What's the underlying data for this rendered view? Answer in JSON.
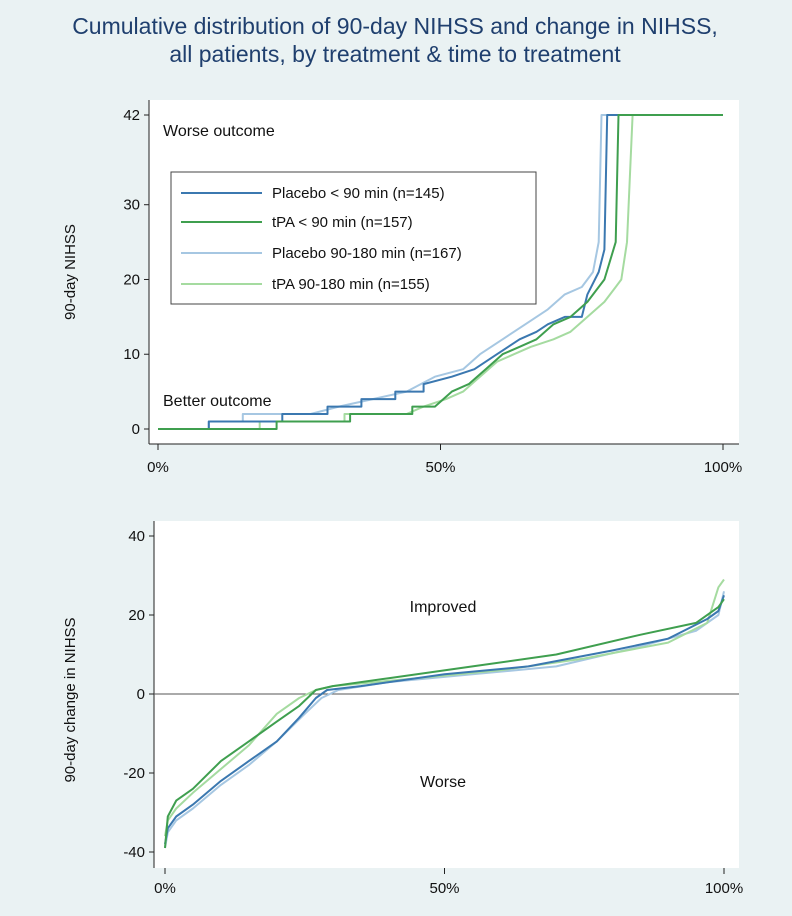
{
  "title_lines": [
    "Cumulative distribution of 90-day NIHSS and change in NIHSS,",
    "all patients, by treatment & time to treatment"
  ],
  "colors": {
    "figure_bg": "#eaf2f3",
    "plot_bg": "#ffffff",
    "title": "#1f3f6e",
    "placebo_lt90": "#3b78b0",
    "tpa_lt90": "#3f9f4f",
    "placebo_90_180": "#a6c7e2",
    "tpa_90_180": "#a5dba0"
  },
  "chart_data": [
    {
      "type": "line",
      "ylabel": "90-day NIHSS",
      "xlabel": "",
      "x_tick_labels": [
        "0%",
        "50%",
        "100%"
      ],
      "x_ticks": [
        0,
        50,
        100
      ],
      "xlim": [
        0,
        100
      ],
      "y_tick_labels": [
        "0",
        "10",
        "20",
        "30",
        "42"
      ],
      "y_ticks": [
        0,
        10,
        20,
        30,
        42
      ],
      "ylim": [
        -1.5,
        44
      ],
      "reference_line": null,
      "annotations": {
        "top": "Worse outcome",
        "bottom": "Better outcome"
      },
      "legend": [
        "Placebo < 90 min (n=145)",
        "tPA < 90 min (n=157)",
        "Placebo 90-180 min (n=167)",
        "tPA 90-180 min (n=155)"
      ],
      "series": [
        {
          "name": "Placebo < 90 min (n=145)",
          "color_key": "placebo_lt90",
          "points": [
            [
              0,
              0
            ],
            [
              9,
              0
            ],
            [
              9,
              1
            ],
            [
              22,
              1
            ],
            [
              22,
              2
            ],
            [
              30,
              2
            ],
            [
              30,
              3
            ],
            [
              36,
              3
            ],
            [
              36,
              4
            ],
            [
              42,
              4
            ],
            [
              42,
              5
            ],
            [
              47,
              5
            ],
            [
              47,
              6
            ],
            [
              52,
              7
            ],
            [
              56,
              8
            ],
            [
              60,
              10
            ],
            [
              64,
              12
            ],
            [
              67,
              13
            ],
            [
              69,
              14
            ],
            [
              72,
              15
            ],
            [
              75,
              15
            ],
            [
              76,
              18
            ],
            [
              78,
              21
            ],
            [
              79,
              24
            ],
            [
              79.5,
              42
            ],
            [
              100,
              42
            ]
          ]
        },
        {
          "name": "tPA < 90 min (n=157)",
          "color_key": "tpa_lt90",
          "points": [
            [
              0,
              0
            ],
            [
              21,
              0
            ],
            [
              21,
              1
            ],
            [
              34,
              1
            ],
            [
              34,
              2
            ],
            [
              45,
              2
            ],
            [
              45,
              3
            ],
            [
              49,
              3
            ],
            [
              52,
              5
            ],
            [
              55,
              6
            ],
            [
              58,
              8
            ],
            [
              61,
              10
            ],
            [
              64,
              11
            ],
            [
              67,
              12
            ],
            [
              70,
              14
            ],
            [
              73,
              15
            ],
            [
              76,
              17
            ],
            [
              78,
              19
            ],
            [
              79,
              20
            ],
            [
              81,
              25
            ],
            [
              81.5,
              42
            ],
            [
              100,
              42
            ]
          ]
        },
        {
          "name": "Placebo 90-180 min (n=167)",
          "color_key": "placebo_90_180",
          "points": [
            [
              0,
              0
            ],
            [
              9,
              0
            ],
            [
              9,
              1
            ],
            [
              15,
              1
            ],
            [
              15,
              2
            ],
            [
              27,
              2
            ],
            [
              32,
              3
            ],
            [
              38,
              4
            ],
            [
              44,
              5
            ],
            [
              49,
              7
            ],
            [
              54,
              8
            ],
            [
              57,
              10
            ],
            [
              61,
              12
            ],
            [
              65,
              14
            ],
            [
              69,
              16
            ],
            [
              72,
              18
            ],
            [
              75,
              19
            ],
            [
              77,
              21
            ],
            [
              78,
              25
            ],
            [
              78.5,
              42
            ],
            [
              100,
              42
            ]
          ]
        },
        {
          "name": "tPA 90-180 min (n=155)",
          "color_key": "tpa_90_180",
          "points": [
            [
              0,
              0
            ],
            [
              18,
              0
            ],
            [
              18,
              1
            ],
            [
              33,
              1
            ],
            [
              33,
              2
            ],
            [
              44,
              2
            ],
            [
              47,
              3
            ],
            [
              51,
              4
            ],
            [
              54,
              5
            ],
            [
              57,
              7
            ],
            [
              60,
              9
            ],
            [
              63,
              10
            ],
            [
              66,
              11
            ],
            [
              70,
              12
            ],
            [
              73,
              13
            ],
            [
              76,
              15
            ],
            [
              79,
              17
            ],
            [
              81,
              19
            ],
            [
              82,
              20
            ],
            [
              83,
              25
            ],
            [
              84,
              42
            ],
            [
              100,
              42
            ]
          ]
        }
      ]
    },
    {
      "type": "line",
      "ylabel": "90-day change in NIHSS",
      "xlabel": "",
      "x_tick_labels": [
        "0%",
        "50%",
        "100%"
      ],
      "x_ticks": [
        0,
        50,
        100
      ],
      "xlim": [
        0,
        100
      ],
      "y_tick_labels": [
        "-40",
        "-20",
        "0",
        "20",
        "40"
      ],
      "y_ticks": [
        -40,
        -20,
        0,
        20,
        40
      ],
      "ylim": [
        -42,
        42
      ],
      "reference_line": 0,
      "annotations": {
        "top": "Improved",
        "bottom": "Worse"
      },
      "series": [
        {
          "name": "Placebo < 90 min (n=145)",
          "color_key": "placebo_lt90",
          "points": [
            [
              0,
              -38
            ],
            [
              0.5,
              -34
            ],
            [
              2,
              -31
            ],
            [
              5,
              -28
            ],
            [
              10,
              -22
            ],
            [
              15,
              -17
            ],
            [
              20,
              -12
            ],
            [
              24,
              -6
            ],
            [
              27,
              -1
            ],
            [
              29,
              1
            ],
            [
              35,
              2
            ],
            [
              50,
              5
            ],
            [
              65,
              7
            ],
            [
              80,
              11
            ],
            [
              90,
              14
            ],
            [
              97,
              19
            ],
            [
              99,
              21
            ],
            [
              100,
              25
            ]
          ]
        },
        {
          "name": "tPA < 90 min (n=157)",
          "color_key": "tpa_lt90",
          "points": [
            [
              0,
              -39
            ],
            [
              0.5,
              -31
            ],
            [
              2,
              -27
            ],
            [
              5,
              -24
            ],
            [
              10,
              -17
            ],
            [
              15,
              -12
            ],
            [
              20,
              -7
            ],
            [
              24,
              -3
            ],
            [
              27,
              1
            ],
            [
              30,
              2
            ],
            [
              40,
              4
            ],
            [
              55,
              7
            ],
            [
              70,
              10
            ],
            [
              85,
              15
            ],
            [
              95,
              18
            ],
            [
              99,
              22
            ],
            [
              100,
              24
            ]
          ]
        },
        {
          "name": "Placebo 90-180 min (n=167)",
          "color_key": "placebo_90_180",
          "points": [
            [
              0,
              -39
            ],
            [
              0.5,
              -35
            ],
            [
              2,
              -32
            ],
            [
              5,
              -29
            ],
            [
              10,
              -23
            ],
            [
              15,
              -18
            ],
            [
              20,
              -12
            ],
            [
              25,
              -5
            ],
            [
              28,
              -1
            ],
            [
              31,
              1
            ],
            [
              40,
              3
            ],
            [
              55,
              5
            ],
            [
              70,
              7
            ],
            [
              85,
              12
            ],
            [
              95,
              16
            ],
            [
              99,
              20
            ],
            [
              100,
              26
            ]
          ]
        },
        {
          "name": "tPA 90-180 min (n=155)",
          "color_key": "tpa_90_180",
          "points": [
            [
              0,
              -36
            ],
            [
              0.5,
              -32
            ],
            [
              2,
              -29
            ],
            [
              5,
              -25
            ],
            [
              10,
              -19
            ],
            [
              15,
              -13
            ],
            [
              20,
              -5
            ],
            [
              24,
              -1
            ],
            [
              27,
              1
            ],
            [
              30,
              2
            ],
            [
              45,
              4
            ],
            [
              60,
              6
            ],
            [
              75,
              9
            ],
            [
              90,
              13
            ],
            [
              97,
              18
            ],
            [
              99,
              27
            ],
            [
              100,
              29
            ]
          ]
        }
      ]
    }
  ]
}
